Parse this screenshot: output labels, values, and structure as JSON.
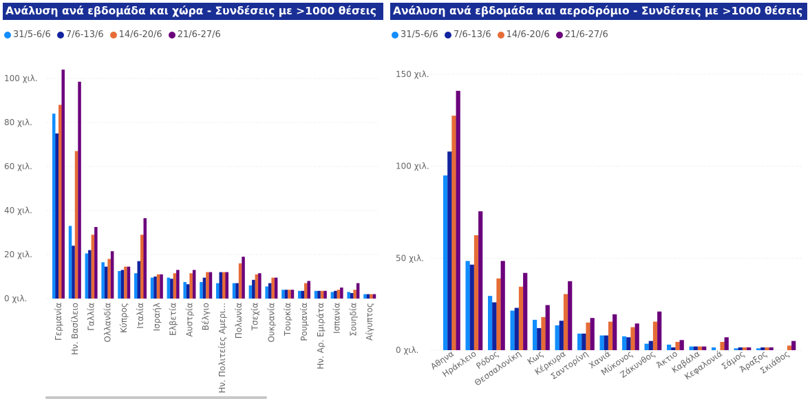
{
  "colors": {
    "s1": "#118dff",
    "s2": "#12239e",
    "s3": "#e66c37",
    "s4": "#6b007b",
    "title_bg": "#1a2f96",
    "grid": "#dddddd"
  },
  "left_title": "Ανάλυση ανά εβδομάδα και χώρα - Συνδέσεις με >1000 θέσεις",
  "right_title": "Ανάλυση ανά εβδομάδα και αεροδρόμιο - Συνδέσεις με >1000 θέσεις",
  "legend": [
    "31/5-6/6",
    "7/6-13/6",
    "14/6-20/6",
    "21/6-27/6"
  ],
  "chart_data": [
    {
      "type": "bar",
      "title": "Ανάλυση ανά εβδομάδα και χώρα - Συνδέσεις με >1000 θέσεις",
      "xlabel": "",
      "ylabel": "",
      "ylim": [
        0,
        100000
      ],
      "yticks": [
        0,
        20000,
        40000,
        60000,
        80000,
        100000
      ],
      "ytick_labels": [
        "0 χιλ.",
        "20 χιλ.",
        "40 χιλ.",
        "60 χιλ.",
        "80 χιλ.",
        "100 χιλ."
      ],
      "grid": true,
      "legend_position": "top-left",
      "categories": [
        "Γερμανία",
        "Ην. Βασίλειο",
        "Γαλλία",
        "Ολλανδία",
        "Κύπρος",
        "Ιταλία",
        "Ισραήλ",
        "Ελβετία",
        "Αυστρία",
        "Βέλγιο",
        "Ην. Πολιτείες Αμερι...",
        "Πολωνία",
        "Τσεχία",
        "Ουκρανία",
        "Τουρκία",
        "Ρουμανία",
        "Ην. Αρ. Εμιράτα",
        "Ισπανία",
        "Σουηδία",
        "Αίγυπτος"
      ],
      "series": [
        {
          "name": "31/5-6/6",
          "values": [
            84000,
            33000,
            20500,
            16500,
            12500,
            11500,
            9500,
            9500,
            7500,
            7500,
            7000,
            7000,
            6000,
            5500,
            4000,
            3500,
            3500,
            3000,
            3000,
            2000
          ]
        },
        {
          "name": "7/6-13/6",
          "values": [
            75000,
            24000,
            22000,
            14500,
            13000,
            17000,
            10000,
            9000,
            6500,
            9500,
            12000,
            7000,
            8500,
            7000,
            4000,
            3500,
            3500,
            3500,
            2500,
            2000
          ]
        },
        {
          "name": "14/6-20/6",
          "values": [
            88000,
            67000,
            29000,
            18000,
            14500,
            29000,
            11000,
            11500,
            11500,
            12000,
            12000,
            16000,
            11000,
            9500,
            4000,
            7000,
            3500,
            4000,
            4000,
            2000
          ]
        },
        {
          "name": "21/6-27/6",
          "values": [
            104000,
            98500,
            32500,
            21500,
            14500,
            36500,
            11000,
            13000,
            13000,
            12000,
            12000,
            19000,
            11500,
            9500,
            4000,
            8000,
            3500,
            5000,
            7000,
            2000
          ]
        }
      ]
    },
    {
      "type": "bar",
      "title": "Ανάλυση ανά εβδομάδα και αεροδρόμιο - Συνδέσεις με >1000 θέσεις",
      "xlabel": "",
      "ylabel": "",
      "ylim": [
        0,
        150000
      ],
      "yticks": [
        0,
        50000,
        100000,
        150000
      ],
      "ytick_labels": [
        "0 χιλ.",
        "50 χιλ.",
        "100 χιλ.",
        "150 χιλ."
      ],
      "grid": true,
      "legend_position": "top-left",
      "categories": [
        "Αθηνα",
        "Ηράκλειο",
        "Ρόδος",
        "Θεσσαλονίκη",
        "Κως",
        "Κέρκυρα",
        "Σαντορίνη",
        "Χανιά",
        "Μύκονος",
        "Ζάκυνθος",
        "Άκτιο",
        "Καβάλα",
        "Κεφαλονιά",
        "Σάμος",
        "Άραξος",
        "Σκιάθος"
      ],
      "series": [
        {
          "name": "31/5-6/6",
          "values": [
            95000,
            48500,
            29500,
            21500,
            16500,
            13500,
            9000,
            8000,
            7500,
            3500,
            3000,
            2000,
            1500,
            1000,
            1000,
            0
          ]
        },
        {
          "name": "7/6-13/6",
          "values": [
            108000,
            46500,
            26000,
            23000,
            12000,
            16000,
            9000,
            8000,
            7000,
            5000,
            1500,
            2000,
            0,
            1500,
            1500,
            0
          ]
        },
        {
          "name": "14/6-20/6",
          "values": [
            127500,
            62500,
            39000,
            34500,
            18000,
            30500,
            15000,
            15500,
            12500,
            15500,
            4500,
            2000,
            4500,
            1500,
            1500,
            2500
          ]
        },
        {
          "name": "21/6-27/6",
          "values": [
            141000,
            75500,
            48500,
            42000,
            24500,
            37500,
            17500,
            19500,
            14500,
            21000,
            5500,
            2000,
            7000,
            1500,
            1500,
            5000
          ]
        }
      ]
    }
  ]
}
